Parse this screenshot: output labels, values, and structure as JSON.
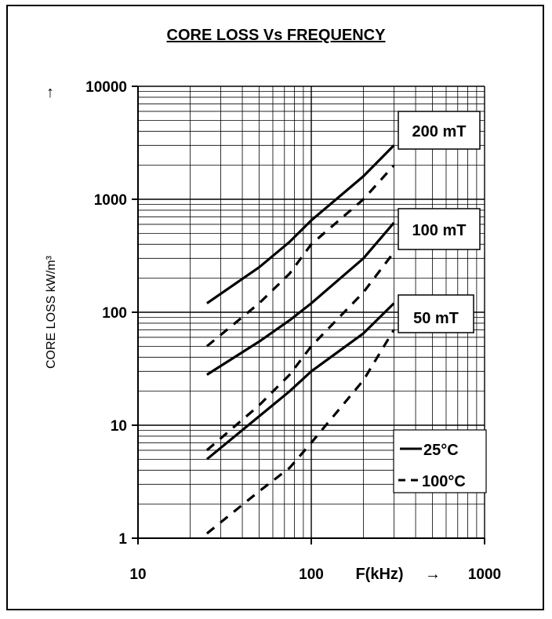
{
  "chart_data": {
    "type": "line",
    "title": "CORE LOSS Vs FREQUENCY",
    "xlabel": "F(kHz)",
    "xlabel_arrow": "→",
    "ylabel": "CORE LOSS kW/m³",
    "ylabel_arrow": "↑",
    "x_scale": "log",
    "y_scale": "log",
    "xlim": [
      10,
      1000
    ],
    "ylim": [
      1,
      10000
    ],
    "x_ticks": [
      "10",
      "100",
      "1000"
    ],
    "y_ticks": [
      "1",
      "10",
      "100",
      "1000",
      "10000"
    ],
    "grid": true,
    "flux_labels": [
      "200 mT",
      "100 mT",
      "50 mT"
    ],
    "legend": {
      "position": "lower-right",
      "entries": [
        {
          "label": "25°C",
          "style": "solid"
        },
        {
          "label": "100°C",
          "style": "dashed"
        }
      ]
    },
    "series": [
      {
        "flux": "200 mT",
        "temp": "25°C",
        "style": "solid",
        "points": [
          [
            25,
            120
          ],
          [
            50,
            250
          ],
          [
            75,
            420
          ],
          [
            100,
            650
          ],
          [
            200,
            1600
          ],
          [
            300,
            3000
          ]
        ]
      },
      {
        "flux": "200 mT",
        "temp": "100°C",
        "style": "dashed",
        "points": [
          [
            25,
            50
          ],
          [
            50,
            120
          ],
          [
            75,
            220
          ],
          [
            100,
            400
          ],
          [
            200,
            1000
          ],
          [
            300,
            2000
          ]
        ]
      },
      {
        "flux": "100 mT",
        "temp": "25°C",
        "style": "solid",
        "points": [
          [
            25,
            28
          ],
          [
            50,
            55
          ],
          [
            75,
            85
          ],
          [
            100,
            120
          ],
          [
            200,
            300
          ],
          [
            300,
            620
          ]
        ]
      },
      {
        "flux": "100 mT",
        "temp": "100°C",
        "style": "dashed",
        "points": [
          [
            25,
            6
          ],
          [
            50,
            15
          ],
          [
            75,
            28
          ],
          [
            100,
            50
          ],
          [
            200,
            150
          ],
          [
            300,
            340
          ]
        ]
      },
      {
        "flux": "50 mT",
        "temp": "25°C",
        "style": "solid",
        "points": [
          [
            25,
            5
          ],
          [
            50,
            12
          ],
          [
            75,
            20
          ],
          [
            100,
            30
          ],
          [
            200,
            65
          ],
          [
            300,
            120
          ]
        ]
      },
      {
        "flux": "50 mT",
        "temp": "100°C",
        "style": "dashed",
        "points": [
          [
            25,
            1.1
          ],
          [
            50,
            2.6
          ],
          [
            75,
            4.2
          ],
          [
            100,
            7
          ],
          [
            200,
            25
          ],
          [
            300,
            70
          ]
        ]
      }
    ]
  }
}
